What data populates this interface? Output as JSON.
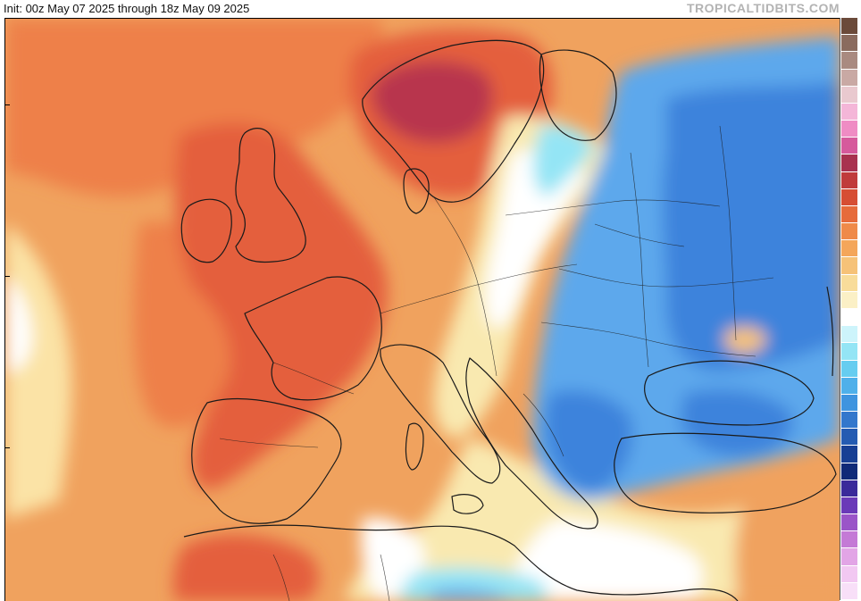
{
  "header": {
    "title": "Init: 00z May 07 2025 through 18z May 09 2025",
    "brand": "TROPICALTIDBITS.COM"
  },
  "map": {
    "background_color": "#f0a25e",
    "border_color": "#1a1a1a",
    "anomaly_regions": [
      {
        "name": "warm-atlantic",
        "color": "#ee8048"
      },
      {
        "name": "warm-uk-france-iberia",
        "color": "#e45f3c"
      },
      {
        "name": "hot-scandinavia",
        "color": "#b8354d"
      },
      {
        "name": "neutral-central-europe",
        "color": "#f9e9b0"
      },
      {
        "name": "cool-eastern-europe",
        "color": "#5da8ec"
      },
      {
        "name": "cold-russia-ukraine",
        "color": "#3e83dc"
      }
    ]
  },
  "colorbar": {
    "swatches": [
      "#6b4a3a",
      "#8a6b5e",
      "#a98a80",
      "#c9a9a4",
      "#e9c9cf",
      "#f4b6d8",
      "#ef8cc4",
      "#d65a9c",
      "#a8324f",
      "#c03b3b",
      "#d64e33",
      "#e66b3b",
      "#ef8a49",
      "#f4a65a",
      "#f6c278",
      "#f8dc9a",
      "#fbf0c6",
      "#ffffff",
      "#cdf4fb",
      "#94e5f5",
      "#66cdf0",
      "#4fb0ea",
      "#3f94df",
      "#3377cc",
      "#245bb2",
      "#173f94",
      "#0f2a78",
      "#3a2a9a",
      "#6a3ab8",
      "#9a55c8",
      "#c47ad6",
      "#e2a5e6",
      "#f2c8f2",
      "#f8dff8"
    ]
  }
}
